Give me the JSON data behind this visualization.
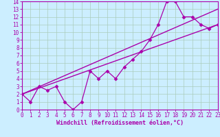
{
  "xlabel": "Windchill (Refroidissement éolien,°C)",
  "bg_color": "#cceeff",
  "grid_color": "#aaccbb",
  "line_color": "#aa00aa",
  "xmin": 0,
  "xmax": 23,
  "ymin": 0,
  "ymax": 14,
  "line1_x": [
    0,
    1,
    2,
    3,
    4,
    5,
    6,
    7,
    8,
    9,
    10,
    11,
    12,
    13,
    14,
    15,
    16,
    17,
    18,
    19,
    20,
    21,
    22,
    23
  ],
  "line1_y": [
    2,
    1,
    3,
    2.5,
    3,
    1,
    0,
    1,
    5,
    4,
    5,
    4,
    5.5,
    6.5,
    7.5,
    9,
    11,
    14,
    14,
    12,
    12,
    11,
    10.5,
    11
  ],
  "line2_x": [
    0,
    23
  ],
  "line2_y": [
    2,
    13
  ],
  "line3_x": [
    0,
    23
  ],
  "line3_y": [
    2,
    11
  ],
  "xticks": [
    0,
    1,
    2,
    3,
    4,
    5,
    6,
    7,
    8,
    9,
    10,
    11,
    12,
    13,
    14,
    15,
    16,
    17,
    18,
    19,
    20,
    21,
    22,
    23
  ],
  "yticks": [
    0,
    1,
    2,
    3,
    4,
    5,
    6,
    7,
    8,
    9,
    10,
    11,
    12,
    13,
    14
  ],
  "xlabel_fontsize": 6,
  "tick_fontsize": 5.5
}
